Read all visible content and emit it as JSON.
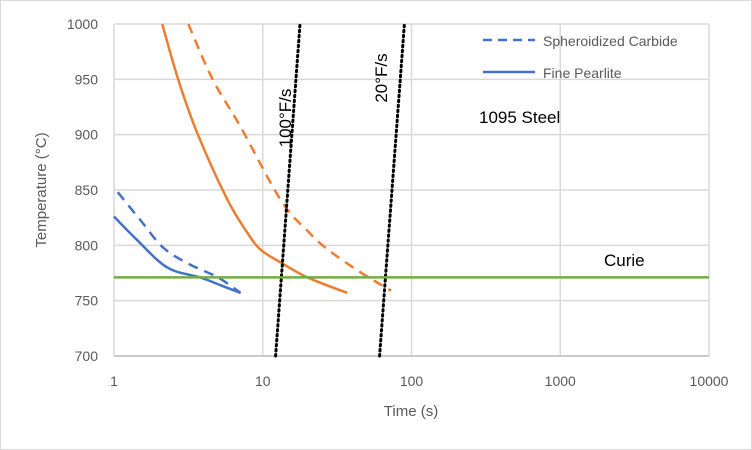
{
  "chart_data": {
    "type": "line",
    "title": "",
    "xlabel": "Time (s)",
    "ylabel": "Temperature (°C)",
    "xscale": "log",
    "xlim": [
      1,
      10000
    ],
    "ylim": [
      700,
      1000
    ],
    "grid": true,
    "xticks": [
      "1",
      "10",
      "100",
      "1000",
      "10000"
    ],
    "yticks": [
      "700",
      "750",
      "800",
      "850",
      "900",
      "950",
      "1000"
    ],
    "legend": {
      "placement": "top-right",
      "entries": [
        "Spheroidized Carbide",
        "Fine Pearlite"
      ]
    },
    "series": [
      {
        "name": "Fine Pearlite (blue)",
        "color": "#4472c4",
        "dash": "solid",
        "points": [
          [
            1,
            826
          ],
          [
            1.4,
            806
          ],
          [
            2.28,
            780
          ],
          [
            3.8,
            771
          ],
          [
            5.2,
            764
          ],
          [
            7.1,
            757
          ]
        ]
      },
      {
        "name": "Spheroidized Carbide (blue)",
        "color": "#4472c4",
        "dash": "dashed",
        "points": [
          [
            1.06,
            848
          ],
          [
            1.5,
            823
          ],
          [
            2.14,
            798
          ],
          [
            3.2,
            783
          ],
          [
            5,
            771
          ],
          [
            7.1,
            757
          ]
        ]
      },
      {
        "name": "Fine Pearlite (orange)",
        "color": "#ed7d31",
        "dash": "solid",
        "points": [
          [
            2.11,
            1000
          ],
          [
            2.7,
            950
          ],
          [
            3.64,
            901
          ],
          [
            5.8,
            841
          ],
          [
            8,
            810
          ],
          [
            9.7,
            796
          ],
          [
            13,
            785
          ],
          [
            20,
            771
          ],
          [
            37,
            757
          ]
        ]
      },
      {
        "name": "Spheroidized Carbide (orange)",
        "color": "#ed7d31",
        "dash": "dashed",
        "points": [
          [
            3.16,
            1000
          ],
          [
            4.6,
            950
          ],
          [
            7.1,
            907
          ],
          [
            13.2,
            841
          ],
          [
            20,
            813
          ],
          [
            27.5,
            796
          ],
          [
            45,
            776
          ],
          [
            73,
            759
          ]
        ]
      },
      {
        "name": "100°F/s",
        "color": "#000000",
        "dash": "dotted",
        "points": [
          [
            12.2,
            700
          ],
          [
            17.8,
            1000
          ]
        ]
      },
      {
        "name": "20°F/s",
        "color": "#000000",
        "dash": "dotted",
        "points": [
          [
            61,
            700
          ],
          [
            89.6,
            1000
          ]
        ]
      },
      {
        "name": "Curie",
        "color": "#70ad47",
        "dash": "solid",
        "points": [
          [
            1,
            771
          ],
          [
            10000,
            771
          ]
        ]
      }
    ],
    "annotations": {
      "rate100": "100°F/s",
      "rate20": "20°F/s",
      "steel": "1095 Steel",
      "curie": "Curie"
    }
  }
}
